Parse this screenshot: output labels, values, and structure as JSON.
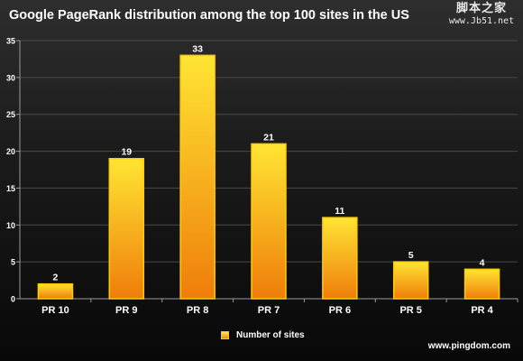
{
  "chart_data": {
    "type": "bar",
    "title": "Google PageRank distribution among the top 100 sites in the US",
    "categories": [
      "PR 10",
      "PR 9",
      "PR 8",
      "PR 7",
      "PR 6",
      "PR 5",
      "PR 4"
    ],
    "series": [
      {
        "name": "Number of sites",
        "values": [
          2,
          19,
          33,
          21,
          11,
          5,
          4
        ]
      }
    ],
    "data_labels": [
      "2",
      "19",
      "33",
      "21",
      "11",
      "5",
      "4"
    ],
    "y_ticks": [
      "0",
      "5",
      "10",
      "15",
      "20",
      "25",
      "30",
      "35"
    ],
    "ylim": [
      0,
      35
    ],
    "grid": true,
    "legend_position": "bottom",
    "source": "www.pingdom.com"
  },
  "watermark": {
    "chinese": "脚本之家",
    "url": "www.Jb51.net"
  },
  "colors": {
    "bar_top": "#ffe533",
    "bar_bottom": "#ef7d0a",
    "bar_border": "#ffcc00",
    "gridline": "#4a4a4a",
    "axis": "#9a9a9a",
    "text": "#ffffff"
  }
}
